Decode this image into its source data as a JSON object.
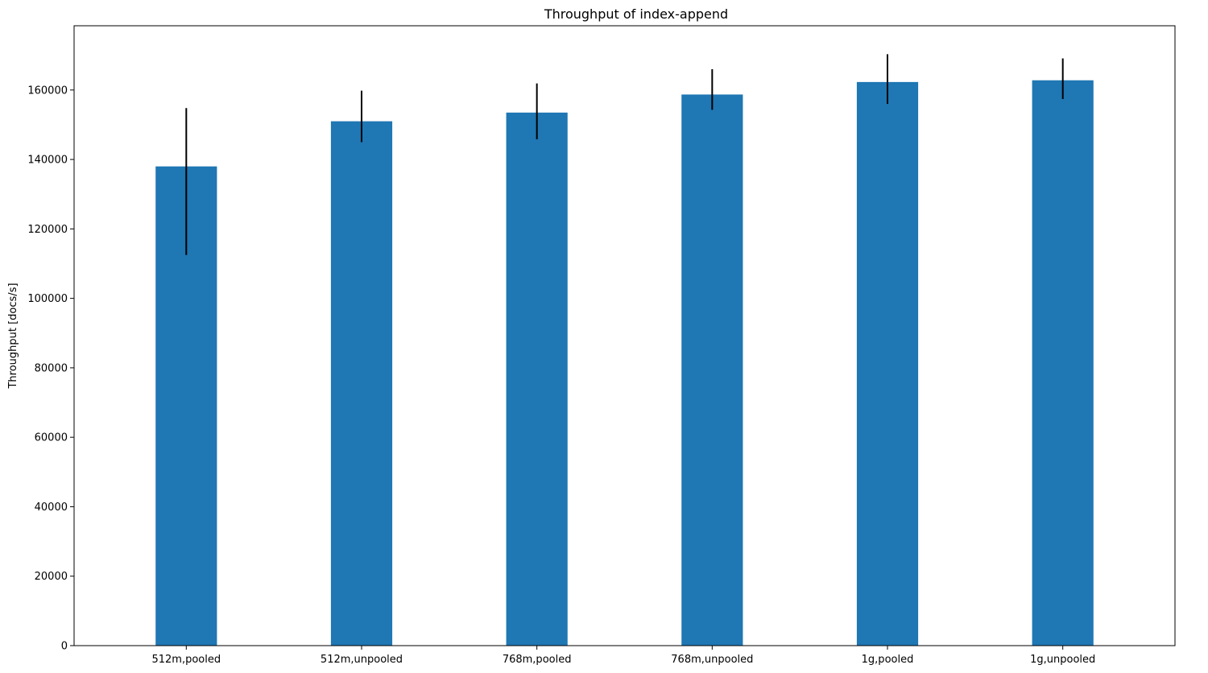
{
  "chart_data": {
    "type": "bar",
    "title": "Throughput of index-append",
    "xlabel": "",
    "ylabel": "Throughput [docs/s]",
    "categories": [
      "512m,pooled",
      "512m,unpooled",
      "768m,pooled",
      "768m,unpooled",
      "1g,pooled",
      "1g,unpooled"
    ],
    "values": [
      138000,
      151000,
      153500,
      158700,
      162300,
      162800
    ],
    "error_low": [
      112500,
      145000,
      145800,
      154300,
      156000,
      157400
    ],
    "error_high": [
      154800,
      159800,
      161900,
      166000,
      170300,
      169100
    ],
    "ylim": [
      0,
      178500
    ],
    "yticks": [
      0,
      20000,
      40000,
      60000,
      80000,
      100000,
      120000,
      140000,
      160000
    ],
    "ytick_labels": [
      "0",
      "20000",
      "40000",
      "60000",
      "80000",
      "100000",
      "120000",
      "140000",
      "160000"
    ],
    "grid": false,
    "legend": "none",
    "bar_color": "#1f77b4",
    "error_color": "#000000"
  }
}
